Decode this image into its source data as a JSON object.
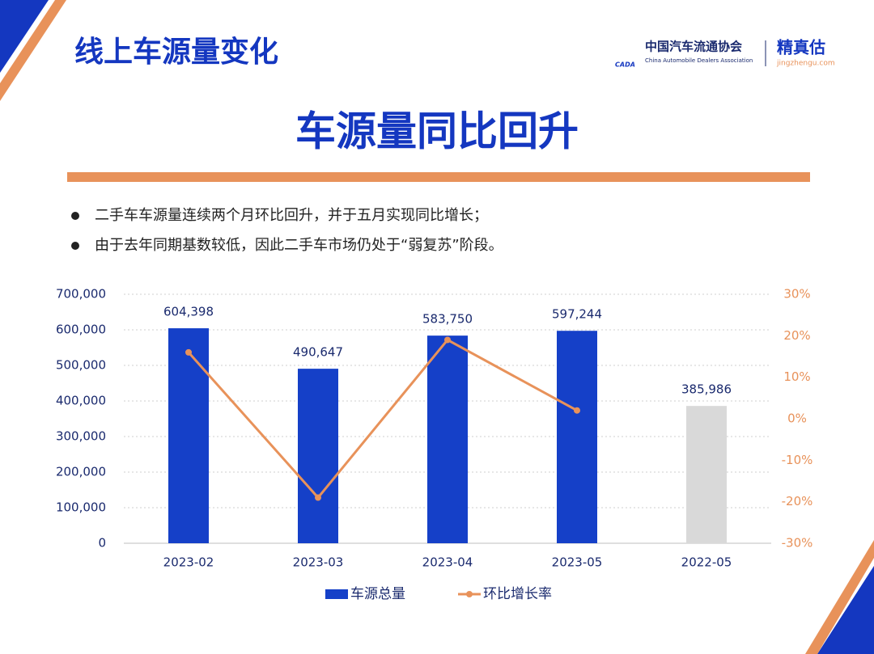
{
  "title": "线上车源量变化",
  "headline": "车源量同比回升",
  "logo": {
    "org_cn": "中国汽车流通协会",
    "org_en": "China Automobile Dealers Association",
    "abbr": "CADA",
    "brand": "精真估",
    "url": "jingzhengu.com"
  },
  "bullets": [
    "二手车车源量连续两个月环比回升，并于五月实现同比增长；",
    "由于去年同期基数较低，因此二手车市场仍处于“弱复苏”阶段。"
  ],
  "chart_data": {
    "type": "bar",
    "categories": [
      "2023-02",
      "2023-03",
      "2023-04",
      "2023-05",
      "2022-05"
    ],
    "series": [
      {
        "name": "车源总量",
        "type": "bar",
        "color": "#1540c8",
        "bar_colors": [
          "#1540c8",
          "#1540c8",
          "#1540c8",
          "#1540c8",
          "#d9d9d9"
        ],
        "values": [
          604398,
          490647,
          583750,
          597244,
          385986
        ],
        "value_labels": [
          "604,398",
          "490,647",
          "583,750",
          "597,244",
          "385,986"
        ]
      },
      {
        "name": "环比增长率",
        "type": "line",
        "axis": "y2",
        "color": "#e8925a",
        "values": [
          16,
          -19,
          19,
          2,
          null
        ]
      }
    ],
    "ylim": [
      0,
      700000
    ],
    "yticks": [
      {
        "value": 0,
        "label": "0"
      },
      {
        "value": 100000,
        "label": "100,000"
      },
      {
        "value": 200000,
        "label": "200,000"
      },
      {
        "value": 300000,
        "label": "300,000"
      },
      {
        "value": 400000,
        "label": "400,000"
      },
      {
        "value": 500000,
        "label": "500,000"
      },
      {
        "value": 600000,
        "label": "600,000"
      },
      {
        "value": 700000,
        "label": "700,000"
      }
    ],
    "y2lim": [
      -30,
      30
    ],
    "y2ticks": [
      {
        "value": -30,
        "label": "-30%"
      },
      {
        "value": -20,
        "label": "-20%"
      },
      {
        "value": -10,
        "label": "-10%"
      },
      {
        "value": 0,
        "label": "0%"
      },
      {
        "value": 10,
        "label": "10%"
      },
      {
        "value": 20,
        "label": "20%"
      },
      {
        "value": 30,
        "label": "30%"
      }
    ],
    "grid": true
  }
}
